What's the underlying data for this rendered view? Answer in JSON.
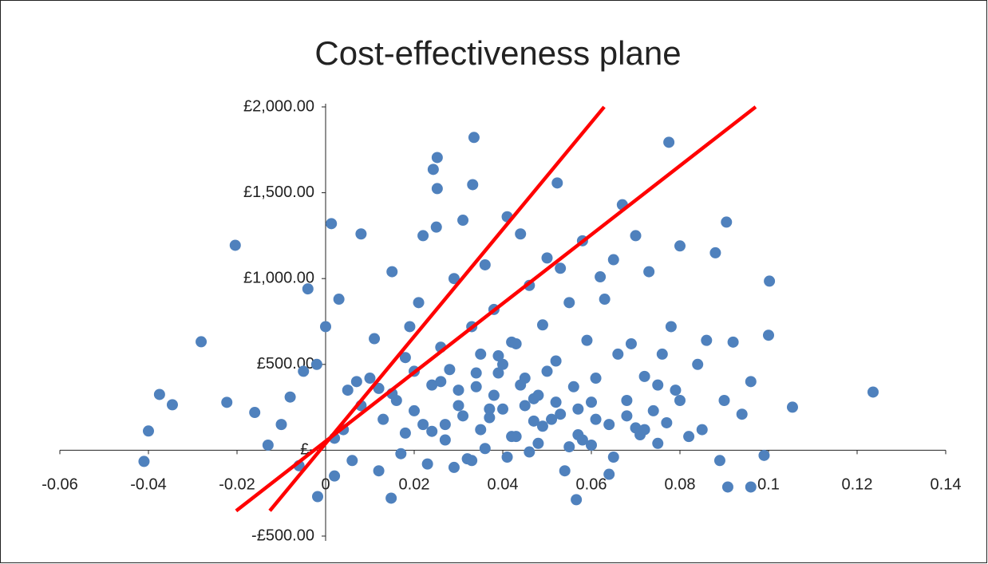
{
  "chart_data": {
    "type": "scatter",
    "title": "Cost-effectiveness plane",
    "xlim": [
      -0.06,
      0.14
    ],
    "xticks": [
      -0.06,
      -0.04,
      -0.02,
      0,
      0.02,
      0.04,
      0.06,
      0.08,
      0.1,
      0.12,
      0.14
    ],
    "ylim": [
      -500,
      2000
    ],
    "yticks": [
      {
        "value": -500,
        "label": "-£500.00"
      },
      {
        "value": 0,
        "label": "£-"
      },
      {
        "value": 500,
        "label": "£500.00"
      },
      {
        "value": 1000,
        "label": "£1,000.00"
      },
      {
        "value": 1500,
        "label": "£1,500.00"
      },
      {
        "value": 2000,
        "label": "£2,000.00"
      }
    ],
    "series": [
      {
        "color": "#4f81bd",
        "mode": "markers",
        "x": [
          -0.041,
          -0.04,
          -0.0375,
          -0.0346,
          -0.0281,
          -0.0204,
          -0.0223,
          0.1236,
          0.1054,
          0.1002,
          0.0905,
          0.0775,
          0.0335,
          0.0252,
          0.0243,
          0.0252,
          0.0332,
          0.0523,
          0.0013,
          0.0908,
          0.096,
          0.0566,
          0.0148,
          -0.0018,
          -0.016,
          -0.013,
          -0.01,
          -0.008,
          -0.005,
          -0.004,
          -0.002,
          0.0,
          0.002,
          0.003,
          0.005,
          0.006,
          0.008,
          0.01,
          0.011,
          0.012,
          0.013,
          0.015,
          0.016,
          0.017,
          0.018,
          0.019,
          0.02,
          0.021,
          0.022,
          0.023,
          0.024,
          0.025,
          0.026,
          0.027,
          0.028,
          0.029,
          0.03,
          0.031,
          0.032,
          0.033,
          0.034,
          0.035,
          0.036,
          0.037,
          0.038,
          0.039,
          0.04,
          0.041,
          0.042,
          0.043,
          0.044,
          0.045,
          0.046,
          0.047,
          0.048,
          0.049,
          0.05,
          0.051,
          0.052,
          0.053,
          0.054,
          0.055,
          0.056,
          0.057,
          0.058,
          0.059,
          0.06,
          0.061,
          0.062,
          0.063,
          0.064,
          0.065,
          0.066,
          0.067,
          0.068,
          0.069,
          0.07,
          0.071,
          0.072,
          0.073,
          0.074,
          0.075,
          0.076,
          0.077,
          0.078,
          0.079,
          0.08,
          0.082,
          0.084,
          0.086,
          0.088,
          0.09,
          0.092,
          0.094,
          0.096,
          0.099,
          0.1,
          0.018,
          0.022,
          0.027,
          0.031,
          0.035,
          0.038,
          0.042,
          0.045,
          0.049,
          0.053,
          0.057,
          0.061,
          0.026,
          0.03,
          0.034,
          0.04,
          0.044,
          0.048,
          0.052,
          0.036,
          0.041,
          0.046,
          0.033,
          0.039,
          0.043,
          0.05,
          0.055,
          0.029,
          0.024,
          0.02,
          0.015,
          0.012,
          0.008,
          0.004,
          0.06,
          0.065,
          0.07,
          0.075,
          0.08,
          0.085,
          0.007,
          0.037,
          0.047,
          0.058,
          0.064,
          0.068,
          0.072,
          0.089,
          0.002,
          -0.006
        ],
        "values": [
          -65,
          112,
          325,
          265,
          632,
          1194,
          279,
          339,
          251,
          985,
          1329,
          1794,
          1822,
          1705,
          1636,
          1524,
          1547,
          1557,
          1320,
          -214,
          -214,
          -288,
          -279,
          -270,
          220,
          30,
          150,
          310,
          460,
          940,
          500,
          720,
          70,
          880,
          350,
          -60,
          1260,
          420,
          650,
          -120,
          180,
          1040,
          290,
          -20,
          540,
          720,
          230,
          860,
          1250,
          -80,
          380,
          1300,
          600,
          150,
          470,
          1000,
          260,
          1340,
          -50,
          720,
          370,
          560,
          1080,
          190,
          820,
          450,
          240,
          1360,
          630,
          80,
          1260,
          420,
          960,
          300,
          40,
          730,
          1120,
          180,
          520,
          1060,
          -120,
          860,
          370,
          240,
          1220,
          640,
          30,
          420,
          1010,
          880,
          150,
          1110,
          560,
          1430,
          290,
          620,
          1250,
          90,
          430,
          1040,
          230,
          380,
          560,
          160,
          720,
          350,
          1190,
          80,
          500,
          640,
          1150,
          290,
          630,
          210,
          400,
          -30,
          670,
          100,
          150,
          60,
          200,
          120,
          320,
          80,
          260,
          140,
          210,
          90,
          180,
          400,
          350,
          450,
          500,
          380,
          320,
          280,
          10,
          -40,
          -10,
          -60,
          550,
          620,
          460,
          20,
          -100,
          110,
          460,
          330,
          360,
          260,
          120,
          280,
          -40,
          130,
          40,
          290,
          120,
          400,
          240,
          170,
          60,
          -140,
          200,
          120,
          -60,
          -150,
          -90
        ]
      },
      {
        "color": "#ff0000",
        "mode": "line",
        "x": [
          -0.0126,
          0.0629
        ],
        "values": [
          -353,
          2000
        ]
      },
      {
        "color": "#ff0000",
        "mode": "line",
        "x": [
          -0.0202,
          0.0971
        ],
        "values": [
          -353,
          2000
        ]
      }
    ]
  }
}
